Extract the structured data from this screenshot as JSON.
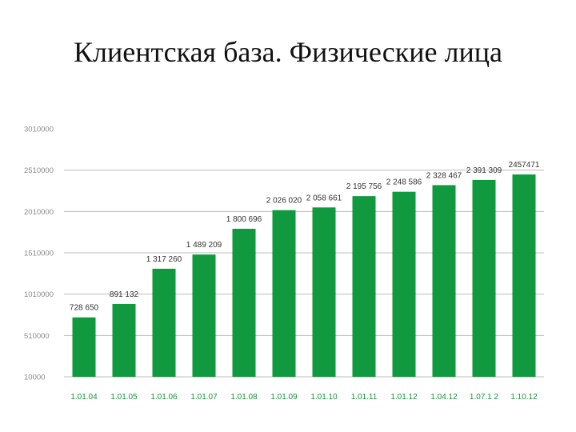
{
  "slide": {
    "title": "Клиентская база. Физические лица"
  },
  "colors": {
    "bar": "#11993f",
    "x_label": "#1a8f3c",
    "grid": "#bcbcbc",
    "tick": "#8a8a8a",
    "data_label": "#333333"
  },
  "chart_data": {
    "type": "bar",
    "title": "",
    "xlabel": "",
    "ylabel": "",
    "ylim": [
      10000,
      3010000
    ],
    "y_ticks": [
      10000,
      510000,
      1010000,
      1510000,
      2010000,
      2510000,
      3010000
    ],
    "y_tick_labels": [
      "10000",
      "510000",
      "1010000",
      "1510000",
      "2010000",
      "2510000",
      "3010000"
    ],
    "grid": true,
    "categories": [
      "1.01.04",
      "1.01.05",
      "1.01.06",
      "1.01.07",
      "1.01.08",
      "1.01.09",
      "1.01.10",
      "1.01.11",
      "1.01.12",
      "1.04.12",
      "1.07.12",
      "1.10.12"
    ],
    "values": [
      728650,
      891132,
      1317260,
      1489209,
      1800696,
      2026020,
      2058661,
      2195756,
      2248586,
      2328467,
      2391309,
      2457471
    ],
    "data_labels": [
      "728 650",
      "891 132",
      "1 317 260",
      "1 489 209",
      "1 800 696",
      "2 026 020",
      "2 058 661",
      "2 195 756",
      "2 248 586",
      "2 328 467",
      "2 391 309",
      "2457471"
    ],
    "x_tick_labels": [
      "1.01.04",
      "1.01.05",
      "1.01.06",
      "1.01.07",
      "1.01.08",
      "1.01.09",
      "1.01.10",
      "1.01.11",
      "1.01.12",
      "1.04.12",
      "1.07.1 2",
      "1.10.12"
    ]
  }
}
